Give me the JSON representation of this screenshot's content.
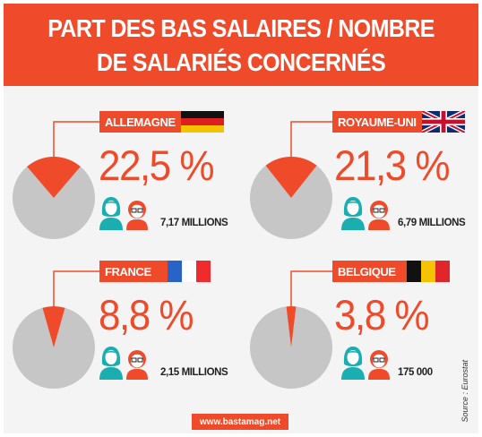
{
  "header": {
    "title_line1": "PART DES BAS SALAIRES / NOMBRE",
    "title_line2": "DE SALARIÉS CONCERNÉS"
  },
  "colors": {
    "accent": "#ef4b2b",
    "pie_gray": "#c6c6c6",
    "person_teal": "#1aaeb0",
    "person_orange": "#ef4b2b",
    "background": "#f4f4f4"
  },
  "chart_data": [
    {
      "type": "pie",
      "country": "ALLEMAGNE",
      "flag": "germany",
      "share_percent": 22.5,
      "label": "22,5 %",
      "count_label": "7,17 MILLIONS"
    },
    {
      "type": "pie",
      "country": "ROYAUME-UNI",
      "flag": "uk",
      "share_percent": 21.3,
      "label": "21,3 %",
      "count_label": "6,79 MILLIONS"
    },
    {
      "type": "pie",
      "country": "FRANCE",
      "flag": "france",
      "share_percent": 8.8,
      "label": "8,8 %",
      "count_label": "2,15 MILLIONS"
    },
    {
      "type": "pie",
      "country": "BELGIQUE",
      "flag": "belgium",
      "share_percent": 3.8,
      "label": "3,8 %",
      "count_label": "175 000"
    }
  ],
  "source": "Source : Eurostat",
  "footer": {
    "link": "www.bastamag.net"
  },
  "icons": {
    "people": "people-icon"
  }
}
